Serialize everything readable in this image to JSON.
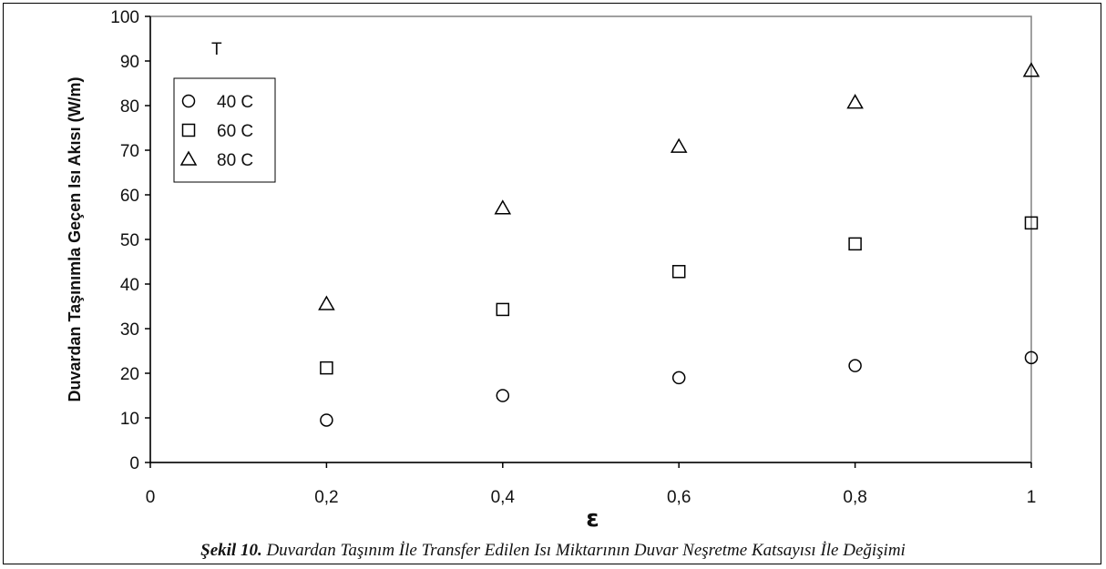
{
  "caption": {
    "label": "Şekil 10.",
    "text": " Duvardan Taşınım İle Transfer Edilen Isı Miktarının Duvar Neşretme Katsayısı İle Değişimi"
  },
  "chart_data": {
    "type": "scatter",
    "title": "",
    "xlabel": "ε",
    "ylabel": "Duvardan Taşınımla Geçen Isı Akısı (W/m)",
    "xlim": [
      0,
      1
    ],
    "ylim": [
      0,
      100
    ],
    "x_ticks": [
      0,
      0.2,
      0.4,
      0.6,
      0.8,
      1
    ],
    "x_tick_labels": [
      "0",
      "0,2",
      "0,4",
      "0,6",
      "0,8",
      "1"
    ],
    "y_ticks": [
      0,
      10,
      20,
      30,
      40,
      50,
      60,
      70,
      80,
      90,
      100
    ],
    "y_tick_labels": [
      "0",
      "10",
      "20",
      "30",
      "40",
      "50",
      "60",
      "70",
      "80",
      "90",
      "100"
    ],
    "grid": false,
    "legend": {
      "title": "T",
      "placement": "top-left"
    },
    "x": [
      0.2,
      0.4,
      0.6,
      0.8,
      1
    ],
    "series": [
      {
        "name": "40 C",
        "marker": "circle",
        "values": [
          9.5,
          15,
          19,
          21.7,
          23.5
        ]
      },
      {
        "name": "60 C",
        "marker": "square",
        "values": [
          21.2,
          34.3,
          42.8,
          49,
          53.7
        ]
      },
      {
        "name": "80 C",
        "marker": "triangle",
        "values": [
          35.5,
          57,
          70.8,
          80.7,
          87.8
        ]
      }
    ]
  }
}
